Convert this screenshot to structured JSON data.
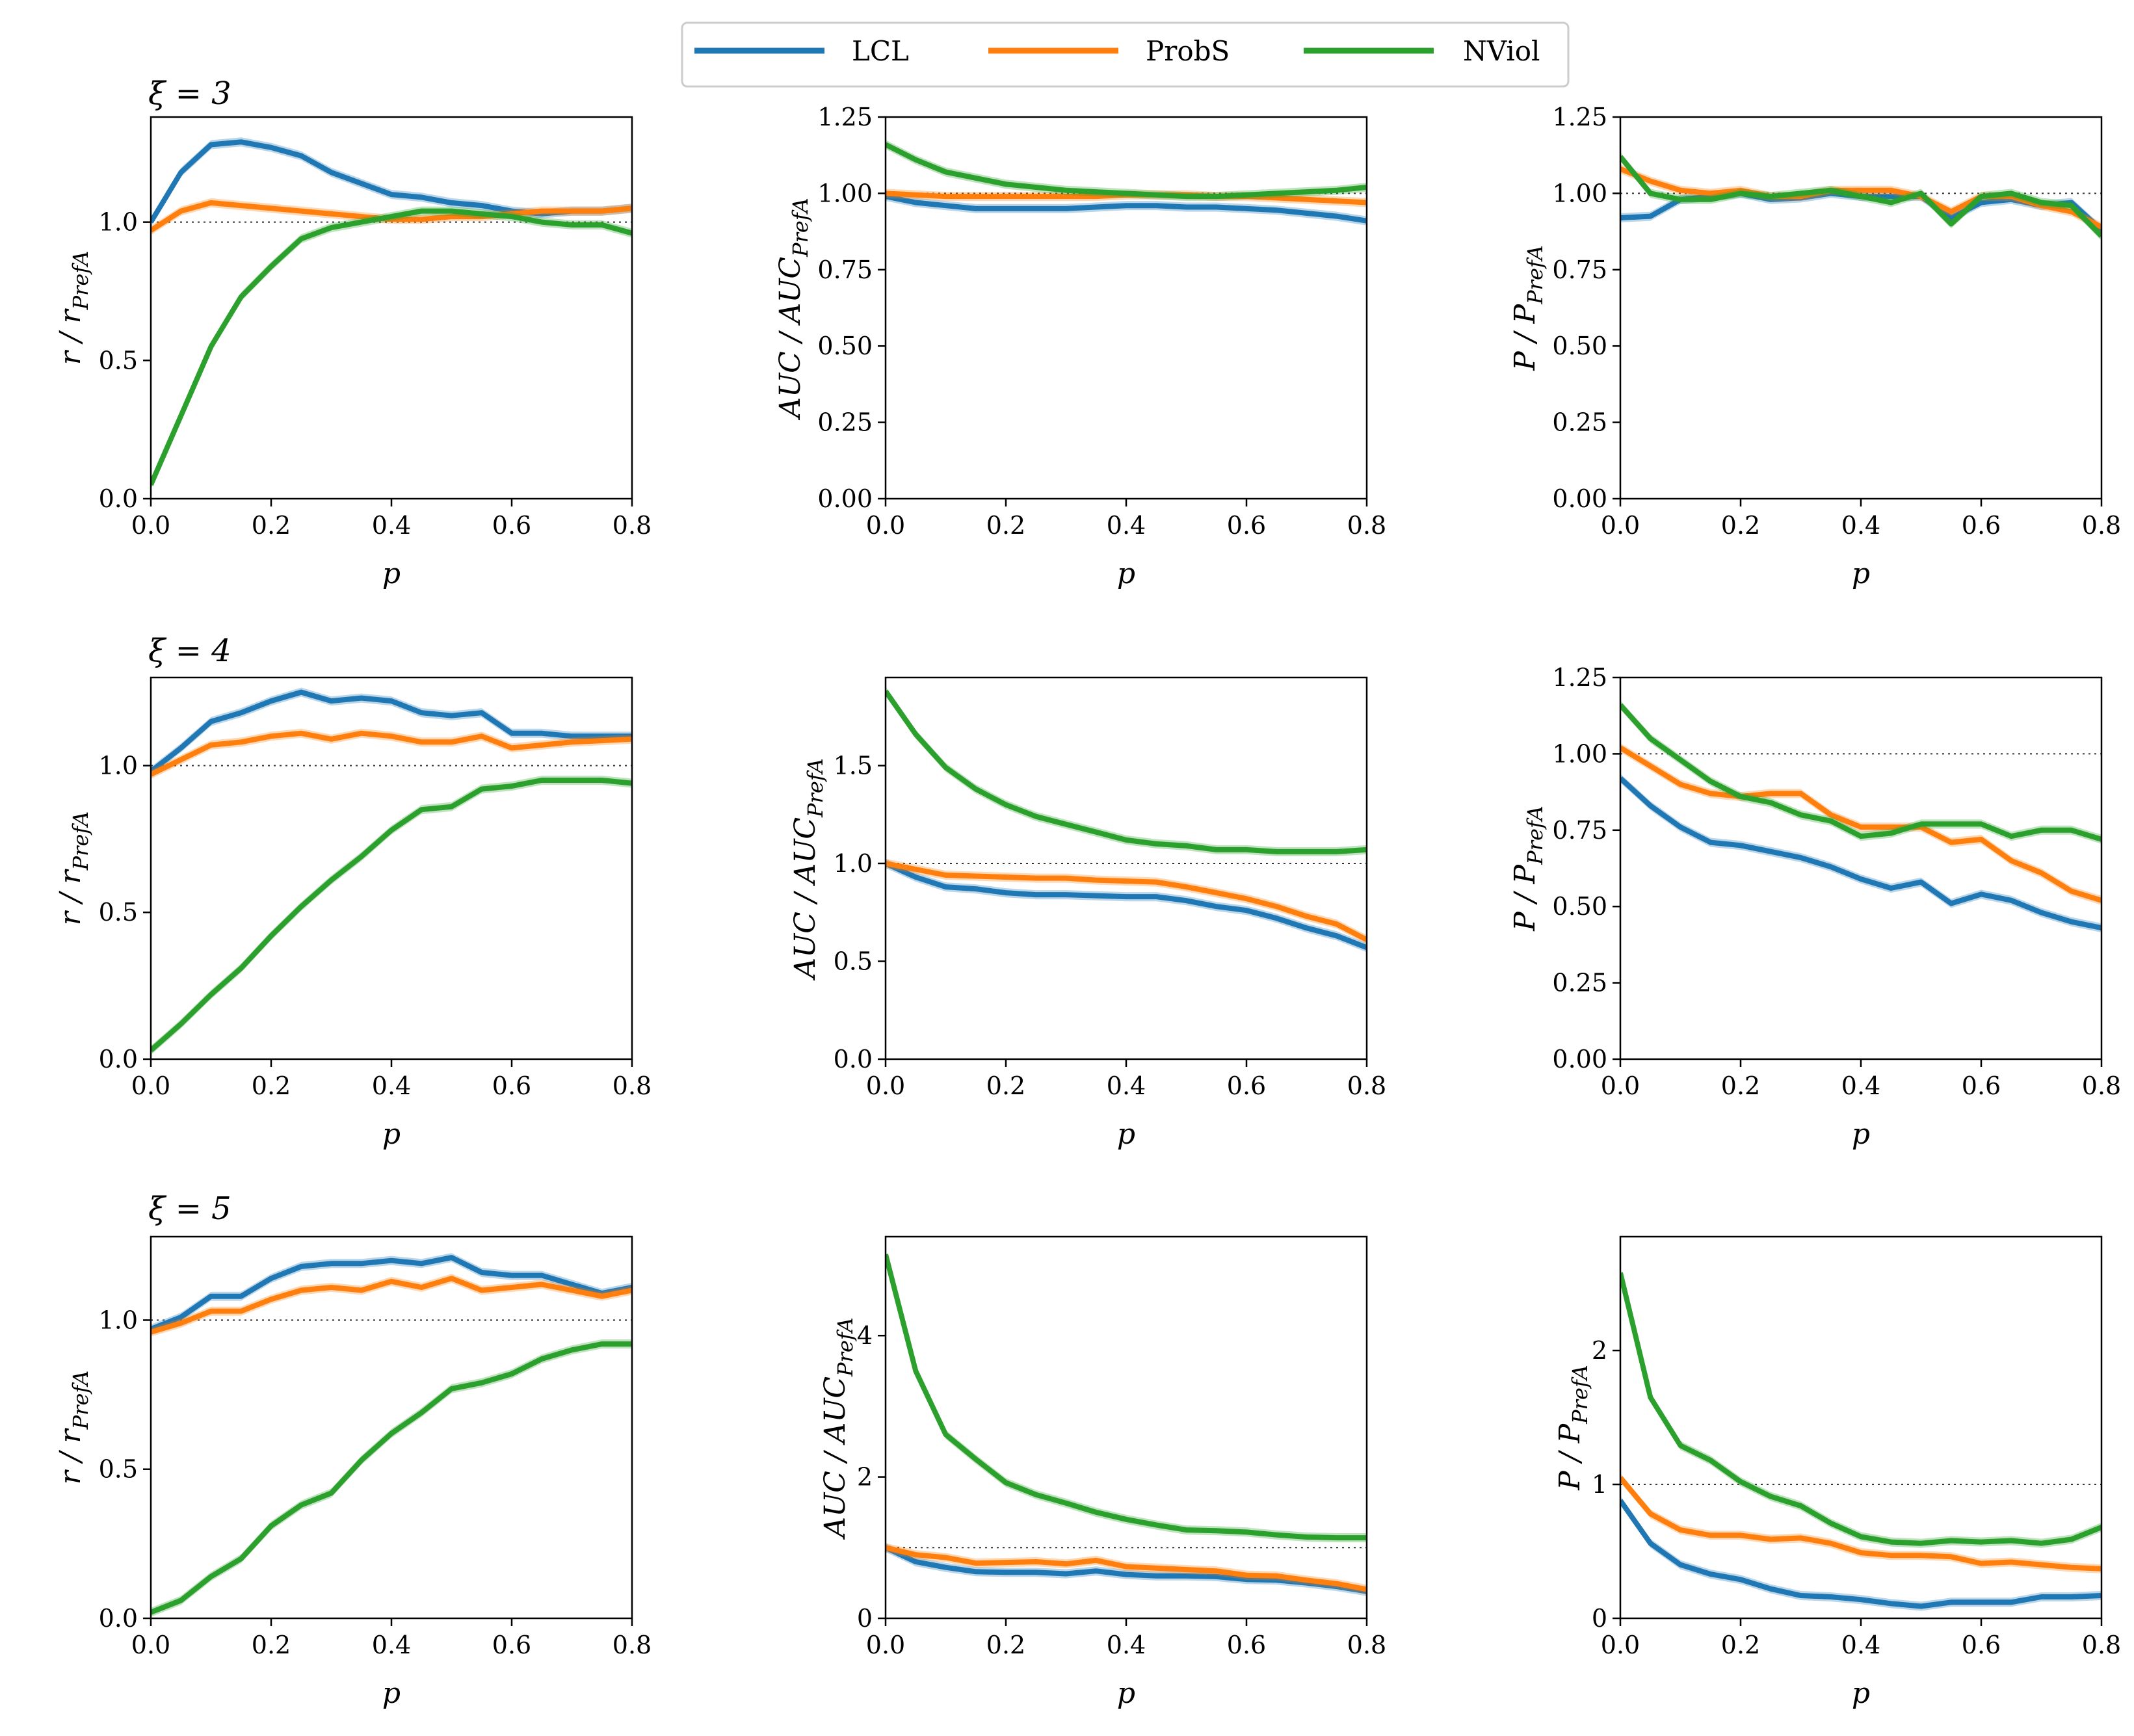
{
  "legend": [
    {
      "label": "LCL",
      "color": "#1f77b4"
    },
    {
      "label": "ProbS",
      "color": "#ff7f0e"
    },
    {
      "label": "NViol",
      "color": "#2ca02c"
    }
  ],
  "row_titles": [
    "ξ = 3",
    "ξ = 4",
    "ξ = 5"
  ],
  "chart_data": [
    {
      "type": "line",
      "title": "ξ = 3",
      "xlabel": "p",
      "ylabel": "r / r_PrefA",
      "xlim": [
        0,
        0.8
      ],
      "ylim": [
        0,
        1.38
      ],
      "xticks": [
        "0.0",
        "0.2",
        "0.4",
        "0.6",
        "0.8"
      ],
      "yticks": [
        "0.0",
        "0.5",
        "1.0"
      ],
      "ytick_values": [
        0,
        0.5,
        1.0
      ],
      "x": [
        0,
        0.05,
        0.1,
        0.15,
        0.2,
        0.25,
        0.3,
        0.35,
        0.4,
        0.45,
        0.5,
        0.55,
        0.6,
        0.65,
        0.7,
        0.75,
        0.8
      ],
      "series": [
        {
          "name": "LCL",
          "values": [
            1.0,
            1.18,
            1.28,
            1.29,
            1.27,
            1.24,
            1.18,
            1.14,
            1.1,
            1.09,
            1.07,
            1.06,
            1.04,
            1.03,
            1.04,
            1.04,
            1.05
          ]
        },
        {
          "name": "ProbS",
          "values": [
            0.97,
            1.04,
            1.07,
            1.06,
            1.05,
            1.04,
            1.03,
            1.02,
            1.01,
            1.01,
            1.02,
            1.02,
            1.03,
            1.04,
            1.04,
            1.04,
            1.05
          ]
        },
        {
          "name": "NViol",
          "values": [
            0.05,
            0.3,
            0.55,
            0.73,
            0.84,
            0.94,
            0.98,
            1.0,
            1.02,
            1.04,
            1.04,
            1.03,
            1.02,
            1.0,
            0.99,
            0.99,
            0.96
          ]
        }
      ]
    },
    {
      "type": "line",
      "xlabel": "p",
      "ylabel": "AUC / AUC_PrefA",
      "xlim": [
        0,
        0.8
      ],
      "ylim": [
        0,
        1.25
      ],
      "xticks": [
        "0.0",
        "0.2",
        "0.4",
        "0.6",
        "0.8"
      ],
      "yticks": [
        "0.00",
        "0.25",
        "0.50",
        "0.75",
        "1.00",
        "1.25"
      ],
      "ytick_values": [
        0,
        0.25,
        0.5,
        0.75,
        1.0,
        1.25
      ],
      "x": [
        0,
        0.05,
        0.1,
        0.15,
        0.2,
        0.25,
        0.3,
        0.35,
        0.4,
        0.45,
        0.5,
        0.55,
        0.6,
        0.65,
        0.7,
        0.75,
        0.8
      ],
      "series": [
        {
          "name": "LCL",
          "values": [
            0.99,
            0.97,
            0.96,
            0.95,
            0.95,
            0.95,
            0.95,
            0.955,
            0.96,
            0.96,
            0.955,
            0.955,
            0.95,
            0.945,
            0.935,
            0.925,
            0.91
          ]
        },
        {
          "name": "ProbS",
          "values": [
            1.0,
            0.995,
            0.99,
            0.99,
            0.99,
            0.99,
            0.99,
            0.99,
            0.995,
            0.995,
            0.995,
            0.99,
            0.99,
            0.985,
            0.98,
            0.975,
            0.97
          ]
        },
        {
          "name": "NViol",
          "values": [
            1.16,
            1.11,
            1.07,
            1.05,
            1.03,
            1.02,
            1.01,
            1.005,
            1.0,
            0.995,
            0.99,
            0.99,
            0.995,
            1.0,
            1.005,
            1.01,
            1.02
          ]
        }
      ]
    },
    {
      "type": "line",
      "xlabel": "p",
      "ylabel": "P / P_PrefA",
      "xlim": [
        0,
        0.8
      ],
      "ylim": [
        0,
        1.25
      ],
      "xticks": [
        "0.0",
        "0.2",
        "0.4",
        "0.6",
        "0.8"
      ],
      "yticks": [
        "0.00",
        "0.25",
        "0.50",
        "0.75",
        "1.00",
        "1.25"
      ],
      "ytick_values": [
        0,
        0.25,
        0.5,
        0.75,
        1.0,
        1.25
      ],
      "x": [
        0,
        0.05,
        0.1,
        0.15,
        0.2,
        0.25,
        0.3,
        0.35,
        0.4,
        0.45,
        0.5,
        0.55,
        0.6,
        0.65,
        0.7,
        0.75,
        0.8
      ],
      "series": [
        {
          "name": "LCL",
          "values": [
            0.92,
            0.925,
            0.98,
            0.99,
            1.0,
            0.98,
            0.985,
            1.0,
            0.99,
            0.99,
            0.99,
            0.92,
            0.97,
            0.98,
            0.96,
            0.97,
            0.88
          ]
        },
        {
          "name": "ProbS",
          "values": [
            1.08,
            1.04,
            1.01,
            1.0,
            1.01,
            0.99,
            0.99,
            1.01,
            1.01,
            1.01,
            0.99,
            0.94,
            0.99,
            0.99,
            0.96,
            0.94,
            0.89
          ]
        },
        {
          "name": "NViol",
          "values": [
            1.12,
            1.0,
            0.98,
            0.98,
            1.0,
            0.99,
            1.0,
            1.01,
            0.99,
            0.97,
            1.0,
            0.9,
            0.99,
            1.0,
            0.97,
            0.96,
            0.86
          ]
        }
      ]
    },
    {
      "type": "line",
      "title": "ξ = 4",
      "xlabel": "p",
      "ylabel": "r / r_PrefA",
      "xlim": [
        0,
        0.8
      ],
      "ylim": [
        0,
        1.3
      ],
      "xticks": [
        "0.0",
        "0.2",
        "0.4",
        "0.6",
        "0.8"
      ],
      "yticks": [
        "0.0",
        "0.5",
        "1.0"
      ],
      "ytick_values": [
        0,
        0.5,
        1.0
      ],
      "x": [
        0,
        0.05,
        0.1,
        0.15,
        0.2,
        0.25,
        0.3,
        0.35,
        0.4,
        0.45,
        0.5,
        0.55,
        0.6,
        0.65,
        0.7,
        0.75,
        0.8
      ],
      "series": [
        {
          "name": "LCL",
          "values": [
            0.98,
            1.06,
            1.15,
            1.18,
            1.22,
            1.25,
            1.22,
            1.23,
            1.22,
            1.18,
            1.17,
            1.18,
            1.11,
            1.11,
            1.1,
            1.1,
            1.1
          ]
        },
        {
          "name": "ProbS",
          "values": [
            0.97,
            1.02,
            1.07,
            1.08,
            1.1,
            1.11,
            1.09,
            1.11,
            1.1,
            1.08,
            1.08,
            1.1,
            1.06,
            1.07,
            1.08,
            1.085,
            1.09
          ]
        },
        {
          "name": "NViol",
          "values": [
            0.03,
            0.12,
            0.22,
            0.31,
            0.42,
            0.52,
            0.61,
            0.69,
            0.78,
            0.85,
            0.86,
            0.92,
            0.93,
            0.95,
            0.95,
            0.95,
            0.94
          ]
        }
      ]
    },
    {
      "type": "line",
      "xlabel": "p",
      "ylabel": "AUC / AUC_PrefA",
      "xlim": [
        0,
        0.8
      ],
      "ylim": [
        0,
        1.95
      ],
      "xticks": [
        "0.0",
        "0.2",
        "0.4",
        "0.6",
        "0.8"
      ],
      "yticks": [
        "0.0",
        "0.5",
        "1.0",
        "1.5"
      ],
      "ytick_values": [
        0,
        0.5,
        1.0,
        1.5
      ],
      "x": [
        0,
        0.05,
        0.1,
        0.15,
        0.2,
        0.25,
        0.3,
        0.35,
        0.4,
        0.45,
        0.5,
        0.55,
        0.6,
        0.65,
        0.7,
        0.75,
        0.8
      ],
      "series": [
        {
          "name": "LCL",
          "values": [
            1.0,
            0.93,
            0.88,
            0.87,
            0.85,
            0.84,
            0.84,
            0.835,
            0.83,
            0.83,
            0.81,
            0.78,
            0.76,
            0.72,
            0.67,
            0.63,
            0.57
          ]
        },
        {
          "name": "ProbS",
          "values": [
            1.0,
            0.97,
            0.94,
            0.935,
            0.93,
            0.925,
            0.925,
            0.915,
            0.91,
            0.905,
            0.88,
            0.85,
            0.82,
            0.78,
            0.73,
            0.69,
            0.61
          ]
        },
        {
          "name": "NViol",
          "values": [
            1.88,
            1.66,
            1.49,
            1.38,
            1.3,
            1.24,
            1.2,
            1.16,
            1.12,
            1.1,
            1.09,
            1.07,
            1.07,
            1.06,
            1.06,
            1.06,
            1.07
          ]
        }
      ]
    },
    {
      "type": "line",
      "xlabel": "p",
      "ylabel": "P / P_PrefA",
      "xlim": [
        0,
        0.8
      ],
      "ylim": [
        0,
        1.25
      ],
      "xticks": [
        "0.0",
        "0.2",
        "0.4",
        "0.6",
        "0.8"
      ],
      "yticks": [
        "0.00",
        "0.25",
        "0.50",
        "0.75",
        "1.00",
        "1.25"
      ],
      "ytick_values": [
        0,
        0.25,
        0.5,
        0.75,
        1.0,
        1.25
      ],
      "x": [
        0,
        0.05,
        0.1,
        0.15,
        0.2,
        0.25,
        0.3,
        0.35,
        0.4,
        0.45,
        0.5,
        0.55,
        0.6,
        0.65,
        0.7,
        0.75,
        0.8
      ],
      "series": [
        {
          "name": "LCL",
          "values": [
            0.92,
            0.83,
            0.76,
            0.71,
            0.7,
            0.68,
            0.66,
            0.63,
            0.59,
            0.56,
            0.58,
            0.51,
            0.54,
            0.52,
            0.48,
            0.45,
            0.43
          ]
        },
        {
          "name": "ProbS",
          "values": [
            1.02,
            0.96,
            0.9,
            0.87,
            0.86,
            0.87,
            0.87,
            0.8,
            0.76,
            0.76,
            0.76,
            0.71,
            0.72,
            0.65,
            0.61,
            0.55,
            0.52
          ]
        },
        {
          "name": "NViol",
          "values": [
            1.16,
            1.05,
            0.98,
            0.91,
            0.86,
            0.84,
            0.8,
            0.78,
            0.73,
            0.74,
            0.77,
            0.77,
            0.77,
            0.73,
            0.75,
            0.75,
            0.72
          ]
        }
      ]
    },
    {
      "type": "line",
      "title": "ξ = 5",
      "xlabel": "p",
      "ylabel": "r / r_PrefA",
      "xlim": [
        0,
        0.8
      ],
      "ylim": [
        0,
        1.28
      ],
      "xticks": [
        "0.0",
        "0.2",
        "0.4",
        "0.6",
        "0.8"
      ],
      "yticks": [
        "0.0",
        "0.5",
        "1.0"
      ],
      "ytick_values": [
        0,
        0.5,
        1.0
      ],
      "x": [
        0,
        0.05,
        0.1,
        0.15,
        0.2,
        0.25,
        0.3,
        0.35,
        0.4,
        0.45,
        0.5,
        0.55,
        0.6,
        0.65,
        0.7,
        0.75,
        0.8
      ],
      "series": [
        {
          "name": "LCL",
          "values": [
            0.97,
            1.01,
            1.08,
            1.08,
            1.14,
            1.18,
            1.19,
            1.19,
            1.2,
            1.19,
            1.21,
            1.16,
            1.15,
            1.15,
            1.12,
            1.09,
            1.11
          ]
        },
        {
          "name": "ProbS",
          "values": [
            0.96,
            0.99,
            1.03,
            1.03,
            1.07,
            1.1,
            1.11,
            1.1,
            1.13,
            1.11,
            1.14,
            1.1,
            1.11,
            1.12,
            1.1,
            1.08,
            1.1
          ]
        },
        {
          "name": "NViol",
          "values": [
            0.02,
            0.06,
            0.14,
            0.2,
            0.31,
            0.38,
            0.42,
            0.53,
            0.62,
            0.69,
            0.77,
            0.79,
            0.82,
            0.87,
            0.9,
            0.92,
            0.92
          ]
        }
      ]
    },
    {
      "type": "line",
      "xlabel": "p",
      "ylabel": "AUC / AUC_PrefA",
      "xlim": [
        0,
        0.8
      ],
      "ylim": [
        0,
        5.4
      ],
      "xticks": [
        "0.0",
        "0.2",
        "0.4",
        "0.6",
        "0.8"
      ],
      "yticks": [
        "0",
        "2",
        "4"
      ],
      "ytick_values": [
        0,
        2,
        4
      ],
      "x": [
        0,
        0.05,
        0.1,
        0.15,
        0.2,
        0.25,
        0.3,
        0.35,
        0.4,
        0.45,
        0.5,
        0.55,
        0.6,
        0.65,
        0.7,
        0.75,
        0.8
      ],
      "series": [
        {
          "name": "LCL",
          "values": [
            1.0,
            0.8,
            0.72,
            0.66,
            0.65,
            0.65,
            0.63,
            0.67,
            0.62,
            0.6,
            0.6,
            0.59,
            0.55,
            0.54,
            0.5,
            0.45,
            0.38
          ]
        },
        {
          "name": "ProbS",
          "values": [
            1.0,
            0.9,
            0.86,
            0.78,
            0.79,
            0.8,
            0.77,
            0.82,
            0.73,
            0.71,
            0.69,
            0.67,
            0.61,
            0.6,
            0.54,
            0.49,
            0.41
          ]
        },
        {
          "name": "NViol",
          "values": [
            5.15,
            3.5,
            2.6,
            2.25,
            1.92,
            1.75,
            1.63,
            1.5,
            1.4,
            1.32,
            1.25,
            1.24,
            1.22,
            1.18,
            1.15,
            1.14,
            1.14
          ]
        }
      ]
    },
    {
      "type": "line",
      "xlabel": "p",
      "ylabel": "P / P_PrefA",
      "xlim": [
        0,
        0.8
      ],
      "ylim": [
        0,
        2.85
      ],
      "xticks": [
        "0.0",
        "0.2",
        "0.4",
        "0.6",
        "0.8"
      ],
      "yticks": [
        "0",
        "1",
        "2"
      ],
      "ytick_values": [
        0,
        1,
        2
      ],
      "x": [
        0,
        0.05,
        0.1,
        0.15,
        0.2,
        0.25,
        0.3,
        0.35,
        0.4,
        0.45,
        0.5,
        0.55,
        0.6,
        0.65,
        0.7,
        0.75,
        0.8
      ],
      "series": [
        {
          "name": "LCL",
          "values": [
            0.88,
            0.56,
            0.4,
            0.33,
            0.29,
            0.22,
            0.17,
            0.16,
            0.14,
            0.11,
            0.09,
            0.12,
            0.12,
            0.12,
            0.16,
            0.16,
            0.17
          ]
        },
        {
          "name": "ProbS",
          "values": [
            1.05,
            0.78,
            0.66,
            0.62,
            0.62,
            0.59,
            0.6,
            0.56,
            0.49,
            0.47,
            0.47,
            0.46,
            0.41,
            0.42,
            0.4,
            0.38,
            0.37
          ]
        },
        {
          "name": "NViol",
          "values": [
            2.58,
            1.65,
            1.29,
            1.18,
            1.02,
            0.91,
            0.84,
            0.71,
            0.61,
            0.57,
            0.56,
            0.58,
            0.57,
            0.58,
            0.56,
            0.59,
            0.68
          ]
        }
      ]
    }
  ]
}
